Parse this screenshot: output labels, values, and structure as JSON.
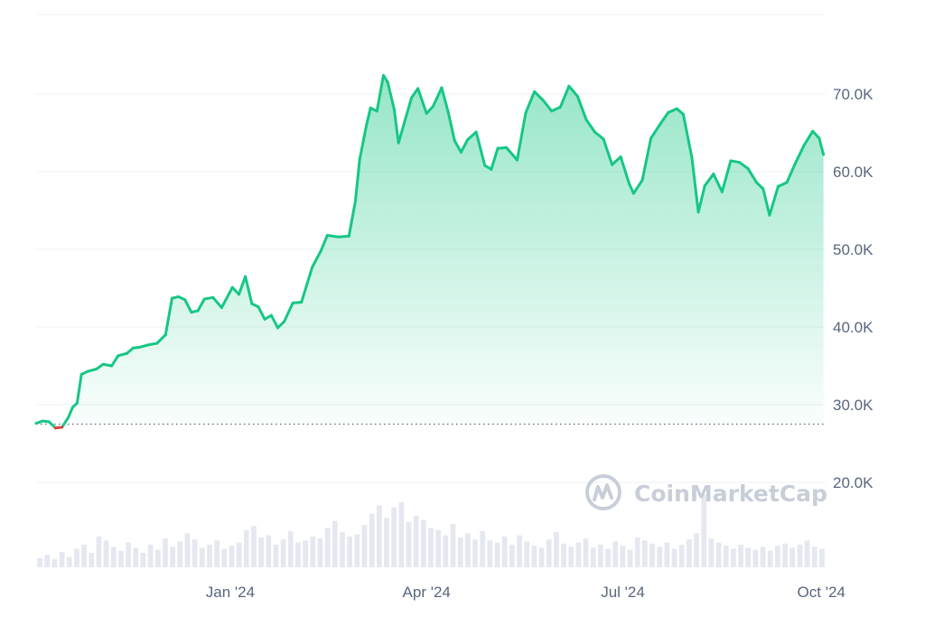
{
  "chart_data": {
    "type": "area",
    "title": "",
    "xlabel": "",
    "ylabel": "",
    "ylim": [
      10000,
      80000
    ],
    "y_ticks": [
      {
        "value": 70000,
        "label": "70.0K"
      },
      {
        "value": 60000,
        "label": "60.0K"
      },
      {
        "value": 50000,
        "label": "50.0K"
      },
      {
        "value": 40000,
        "label": "40.0K"
      },
      {
        "value": 30000,
        "label": "30.0K"
      },
      {
        "value": 20000,
        "label": "20.0K"
      }
    ],
    "x_range": [
      "2023-10-03",
      "2024-10-03"
    ],
    "x_ticks": [
      {
        "date": "2024-01-01",
        "label": "Jan '24"
      },
      {
        "date": "2024-04-01",
        "label": "Apr '24"
      },
      {
        "date": "2024-07-01",
        "label": "Jul '24"
      },
      {
        "date": "2024-10-01",
        "label": "Oct '24"
      }
    ],
    "baseline": 27500,
    "grid": true,
    "colors": {
      "up": "#16c784",
      "down": "#ea3943",
      "grid": "#eff2f5",
      "volume": "#cfd6e4",
      "axis_text": "#58667e"
    },
    "series": [
      {
        "x": [
          "2023-10-03",
          "2023-10-06",
          "2023-10-09",
          "2023-10-12",
          "2023-10-15",
          "2023-10-18",
          "2023-10-20",
          "2023-10-22",
          "2023-10-24",
          "2023-10-27",
          "2023-10-31",
          "2023-11-03",
          "2023-11-07",
          "2023-11-10",
          "2023-11-14",
          "2023-11-17",
          "2023-11-20",
          "2023-11-24",
          "2023-11-28",
          "2023-12-02",
          "2023-12-05",
          "2023-12-08",
          "2023-12-11",
          "2023-12-14",
          "2023-12-17",
          "2023-12-20",
          "2023-12-24",
          "2023-12-28",
          "2024-01-02",
          "2024-01-05",
          "2024-01-08",
          "2024-01-11",
          "2024-01-14",
          "2024-01-17",
          "2024-01-20",
          "2024-01-23",
          "2024-01-26",
          "2024-01-30",
          "2024-02-03",
          "2024-02-08",
          "2024-02-12",
          "2024-02-15",
          "2024-02-20",
          "2024-02-25",
          "2024-02-28",
          "2024-03-01",
          "2024-03-04",
          "2024-03-06",
          "2024-03-09",
          "2024-03-12",
          "2024-03-14",
          "2024-03-17",
          "2024-03-19",
          "2024-03-22",
          "2024-03-25",
          "2024-03-28",
          "2024-04-01",
          "2024-04-04",
          "2024-04-08",
          "2024-04-11",
          "2024-04-14",
          "2024-04-17",
          "2024-04-20",
          "2024-04-24",
          "2024-04-28",
          "2024-05-01",
          "2024-05-04",
          "2024-05-08",
          "2024-05-13",
          "2024-05-17",
          "2024-05-21",
          "2024-05-25",
          "2024-05-29",
          "2024-06-02",
          "2024-06-06",
          "2024-06-10",
          "2024-06-14",
          "2024-06-18",
          "2024-06-22",
          "2024-06-26",
          "2024-06-30",
          "2024-07-04",
          "2024-07-06",
          "2024-07-10",
          "2024-07-14",
          "2024-07-18",
          "2024-07-22",
          "2024-07-26",
          "2024-07-29",
          "2024-08-02",
          "2024-08-05",
          "2024-08-08",
          "2024-08-12",
          "2024-08-16",
          "2024-08-20",
          "2024-08-24",
          "2024-08-28",
          "2024-09-01",
          "2024-09-04",
          "2024-09-07",
          "2024-09-11",
          "2024-09-15",
          "2024-09-19",
          "2024-09-23",
          "2024-09-27",
          "2024-09-30",
          "2024-10-02"
        ],
        "values": [
          27600,
          27900,
          27800,
          27000,
          27100,
          28400,
          29700,
          30200,
          33900,
          34300,
          34600,
          35200,
          35000,
          36300,
          36600,
          37300,
          37400,
          37700,
          37900,
          39000,
          43700,
          43900,
          43500,
          41900,
          42100,
          43600,
          43800,
          42500,
          45100,
          44200,
          46500,
          43000,
          42600,
          41000,
          41500,
          39900,
          40700,
          43100,
          43200,
          47700,
          49800,
          51800,
          51600,
          51700,
          56200,
          61600,
          65800,
          68200,
          67800,
          72400,
          71500,
          68000,
          63700,
          66600,
          69500,
          70700,
          67500,
          68400,
          70800,
          67700,
          64000,
          62500,
          64100,
          65100,
          60800,
          60300,
          63000,
          63100,
          61500,
          67600,
          70300,
          69200,
          67800,
          68300,
          71000,
          69700,
          66700,
          65100,
          64200,
          60900,
          61900,
          58400,
          57200,
          58900,
          64300,
          66000,
          67600,
          68100,
          67400,
          61800,
          54800,
          58200,
          59700,
          57400,
          61400,
          61200,
          60400,
          58600,
          57800,
          54400,
          58100,
          58600,
          61100,
          63400,
          65200,
          64300,
          62200
        ]
      }
    ],
    "volume": [
      9,
      12,
      8,
      15,
      10,
      18,
      22,
      14,
      30,
      26,
      20,
      16,
      24,
      19,
      14,
      22,
      17,
      28,
      20,
      25,
      33,
      27,
      19,
      22,
      26,
      18,
      21,
      24,
      36,
      40,
      29,
      31,
      22,
      27,
      35,
      24,
      26,
      30,
      28,
      38,
      45,
      34,
      30,
      32,
      41,
      52,
      60,
      48,
      58,
      63,
      44,
      50,
      46,
      38,
      36,
      31,
      42,
      29,
      33,
      27,
      35,
      26,
      24,
      30,
      22,
      31,
      25,
      21,
      19,
      27,
      34,
      23,
      20,
      24,
      28,
      19,
      22,
      18,
      25,
      21,
      17,
      29,
      26,
      23,
      20,
      24,
      18,
      22,
      27,
      33,
      70,
      28,
      24,
      21,
      18,
      22,
      19,
      17,
      20,
      16,
      21,
      23,
      19,
      22,
      26,
      20,
      18
    ],
    "volume_max_label": ""
  },
  "watermark": {
    "text": "CoinMarketCap",
    "icon": "coinmarketcap-logo-icon"
  }
}
